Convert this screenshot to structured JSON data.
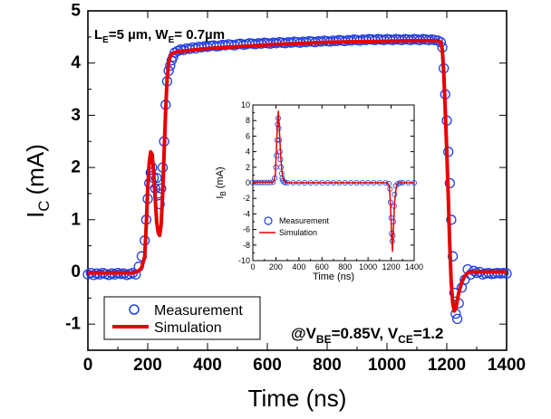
{
  "chart_data": [
    {
      "type": "line",
      "xlabel": "Time (ns)",
      "ylabel_main": "I",
      "ylabel_sub": "C",
      "ylabel_unit": "(mA)",
      "xlim": [
        0,
        1400
      ],
      "ylim": [
        -1.5,
        5
      ],
      "xticks": [
        0,
        200,
        400,
        600,
        800,
        1000,
        1200,
        1400
      ],
      "yticks": [
        -1,
        0,
        1,
        2,
        3,
        4,
        5
      ],
      "annotation_geometry": {
        "l": "L",
        "l_sub": "E",
        "l_val": "=5 µm, W",
        "w_sub": "E",
        "w_val": "= 0.7µm"
      },
      "annotation_bias": {
        "prefix": "@V",
        "vbe_sub": "BE",
        "vbe_val": "=0.85V, V",
        "vce_sub": "CE",
        "vce_val": "=1.2"
      },
      "legend": {
        "position": "bottom-left",
        "entries": [
          "Measurement",
          "Simulation"
        ]
      },
      "series": [
        {
          "name": "Measurement",
          "marker": "open-circle",
          "color": "#1f3fe0",
          "x": [
            0,
            10,
            20,
            30,
            40,
            50,
            60,
            70,
            80,
            90,
            100,
            110,
            120,
            130,
            140,
            150,
            160,
            170,
            180,
            190,
            195,
            200,
            205,
            210,
            215,
            220,
            225,
            230,
            235,
            240,
            245,
            250,
            255,
            260,
            265,
            270,
            275,
            280,
            285,
            290,
            300,
            310,
            320,
            330,
            340,
            350,
            360,
            370,
            380,
            390,
            400,
            410,
            420,
            430,
            440,
            450,
            460,
            470,
            480,
            490,
            500,
            510,
            520,
            530,
            540,
            550,
            560,
            570,
            580,
            590,
            600,
            610,
            620,
            630,
            640,
            650,
            660,
            670,
            680,
            690,
            700,
            710,
            720,
            730,
            740,
            750,
            760,
            770,
            780,
            790,
            800,
            810,
            820,
            830,
            840,
            850,
            860,
            870,
            880,
            890,
            900,
            910,
            920,
            930,
            940,
            950,
            960,
            970,
            980,
            990,
            1000,
            1010,
            1020,
            1030,
            1040,
            1050,
            1060,
            1070,
            1080,
            1090,
            1100,
            1110,
            1120,
            1130,
            1140,
            1150,
            1160,
            1170,
            1180,
            1185,
            1190,
            1195,
            1200,
            1205,
            1210,
            1215,
            1220,
            1225,
            1230,
            1235,
            1240,
            1250,
            1260,
            1270,
            1280,
            1290,
            1300,
            1310,
            1320,
            1330,
            1340,
            1350,
            1360,
            1370,
            1380,
            1390,
            1400
          ],
          "y": [
            -0.05,
            -0.02,
            -0.06,
            -0.03,
            -0.05,
            -0.02,
            -0.04,
            -0.06,
            -0.03,
            -0.05,
            -0.02,
            -0.04,
            -0.03,
            -0.06,
            -0.04,
            -0.02,
            -0.05,
            0.1,
            0.3,
            0.6,
            1.0,
            1.4,
            1.7,
            1.9,
            2.0,
            1.8,
            1.6,
            1.8,
            1.5,
            1.3,
            1.6,
            2.0,
            2.5,
            3.2,
            3.65,
            3.85,
            3.95,
            4.05,
            4.12,
            4.2,
            4.23,
            4.26,
            4.25,
            4.28,
            4.27,
            4.3,
            4.28,
            4.31,
            4.3,
            4.32,
            4.31,
            4.33,
            4.34,
            4.32,
            4.33,
            4.35,
            4.34,
            4.36,
            4.35,
            4.34,
            4.36,
            4.37,
            4.35,
            4.36,
            4.38,
            4.37,
            4.36,
            4.38,
            4.37,
            4.39,
            4.38,
            4.37,
            4.39,
            4.38,
            4.4,
            4.39,
            4.38,
            4.4,
            4.39,
            4.41,
            4.4,
            4.39,
            4.41,
            4.4,
            4.42,
            4.41,
            4.4,
            4.42,
            4.41,
            4.43,
            4.42,
            4.41,
            4.43,
            4.42,
            4.44,
            4.43,
            4.42,
            4.44,
            4.43,
            4.45,
            4.44,
            4.43,
            4.45,
            4.44,
            4.46,
            4.45,
            4.44,
            4.46,
            4.45,
            4.44,
            4.46,
            4.45,
            4.44,
            4.46,
            4.45,
            4.44,
            4.46,
            4.45,
            4.44,
            4.46,
            4.45,
            4.44,
            4.46,
            4.45,
            4.44,
            4.45,
            4.44,
            4.43,
            4.4,
            4.3,
            3.9,
            3.4,
            2.9,
            2.3,
            1.7,
            1.0,
            0.3,
            -0.4,
            -0.8,
            -0.9,
            -0.6,
            -0.3,
            -0.15,
            0.05,
            -0.05,
            0.02,
            -0.02,
            0.0,
            -0.05,
            -0.03,
            -0.02,
            -0.04,
            -0.03,
            -0.02,
            -0.03,
            -0.02,
            -0.03
          ]
        },
        {
          "name": "Simulation",
          "marker": "line",
          "color": "#e60000",
          "x": [
            0,
            150,
            170,
            180,
            190,
            195,
            200,
            205,
            210,
            215,
            220,
            225,
            230,
            235,
            240,
            245,
            250,
            255,
            260,
            265,
            270,
            275,
            280,
            290,
            300,
            400,
            600,
            800,
            1000,
            1100,
            1170,
            1180,
            1185,
            1190,
            1195,
            1200,
            1205,
            1210,
            1215,
            1220,
            1225,
            1230,
            1235,
            1240,
            1250,
            1260,
            1270,
            1280,
            1300,
            1400
          ],
          "y": [
            -0.02,
            -0.02,
            0.02,
            0.08,
            0.3,
            0.9,
            1.6,
            2.1,
            2.3,
            2.25,
            1.9,
            1.4,
            0.95,
            0.75,
            0.7,
            0.9,
            1.5,
            2.3,
            3.1,
            3.7,
            4.0,
            4.12,
            4.18,
            4.2,
            4.22,
            4.28,
            4.35,
            4.4,
            4.42,
            4.43,
            4.43,
            4.4,
            4.25,
            3.8,
            3.1,
            2.3,
            1.4,
            0.5,
            -0.2,
            -0.6,
            -0.75,
            -0.7,
            -0.55,
            -0.4,
            -0.2,
            -0.08,
            -0.02,
            0.0,
            0.0,
            0.0
          ]
        }
      ]
    },
    {
      "type": "line",
      "xlabel": "Time (ns)",
      "ylabel_main": "I",
      "ylabel_sub": "B",
      "ylabel_unit": "(mA)",
      "xlim": [
        0,
        1400
      ],
      "ylim": [
        -10,
        10
      ],
      "xticks": [
        0,
        200,
        400,
        600,
        800,
        1000,
        1200,
        1400
      ],
      "yticks": [
        -10,
        -8,
        -6,
        -4,
        -2,
        0,
        2,
        4,
        6,
        8,
        10
      ],
      "legend": {
        "position": "bottom-left",
        "entries": [
          "Measurement",
          "Simulation"
        ]
      },
      "series": [
        {
          "name": "Measurement",
          "marker": "open-circle",
          "color": "#1f3fe0",
          "x": [
            0,
            25,
            50,
            75,
            100,
            125,
            150,
            175,
            190,
            200,
            205,
            210,
            215,
            220,
            225,
            230,
            235,
            240,
            245,
            250,
            255,
            260,
            270,
            280,
            300,
            350,
            400,
            450,
            500,
            550,
            600,
            650,
            700,
            750,
            800,
            850,
            900,
            950,
            1000,
            1050,
            1100,
            1150,
            1180,
            1190,
            1195,
            1200,
            1205,
            1210,
            1215,
            1220,
            1225,
            1230,
            1240,
            1260,
            1280,
            1300,
            1350,
            1400
          ],
          "y": [
            0.05,
            0.05,
            0.05,
            0.05,
            0.05,
            0.05,
            0.05,
            0.1,
            0.6,
            2.0,
            3.5,
            5.5,
            7.5,
            8.3,
            7.0,
            5.5,
            4.0,
            3.0,
            2.0,
            1.2,
            0.6,
            0.3,
            0.1,
            0.05,
            0.0,
            0.0,
            0.0,
            0.0,
            0.0,
            0.0,
            0.0,
            0.0,
            0.0,
            0.0,
            0.0,
            0.0,
            0.0,
            0.0,
            0.0,
            0.0,
            0.0,
            0.0,
            -0.1,
            -0.8,
            -2.5,
            -4.5,
            -6.5,
            -7.5,
            -6.8,
            -5.0,
            -3.0,
            -1.5,
            -0.4,
            -0.1,
            0.0,
            0.0,
            0.0,
            0.0
          ]
        },
        {
          "name": "Simulation",
          "marker": "line",
          "color": "#e60000",
          "x": [
            0,
            180,
            195,
            205,
            215,
            222,
            230,
            240,
            250,
            260,
            280,
            300,
            1170,
            1185,
            1195,
            1205,
            1212,
            1220,
            1230,
            1245,
            1260,
            1400
          ],
          "y": [
            0.1,
            0.1,
            1.0,
            4.5,
            8.0,
            9.2,
            7.0,
            4.0,
            1.8,
            0.6,
            0.1,
            0.0,
            0.0,
            -0.5,
            -3.0,
            -7.0,
            -8.8,
            -6.0,
            -2.5,
            -0.5,
            0.0,
            0.0
          ]
        }
      ]
    }
  ]
}
